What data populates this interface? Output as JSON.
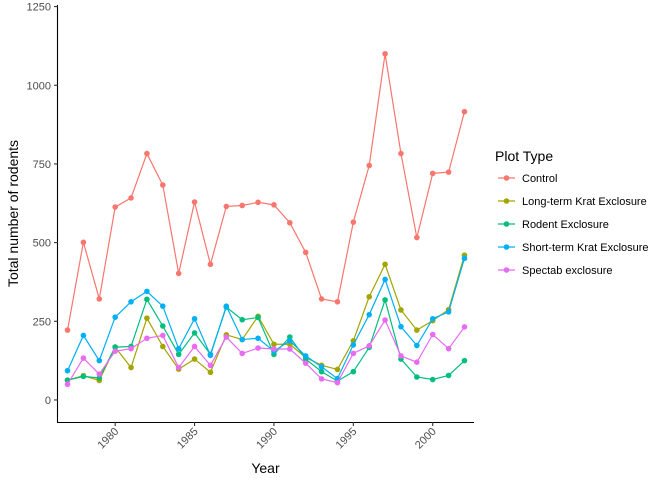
{
  "chart_data": {
    "type": "line",
    "title": "",
    "xlabel": "Year",
    "ylabel": "Total number of rodents",
    "xlim": [
      1976.4,
      2002.6
    ],
    "ylim": [
      -70,
      1255
    ],
    "x_ticks": [
      1980,
      1985,
      1990,
      1995,
      2000
    ],
    "x_tick_labels": [
      "1980",
      "1985",
      "1990",
      "1995",
      "2000"
    ],
    "y_ticks": [
      0,
      250,
      500,
      750,
      1000,
      1250
    ],
    "y_tick_labels": [
      "0",
      "250",
      "500",
      "750",
      "1000",
      "1250"
    ],
    "grid": false,
    "legend": {
      "title": "Plot Type",
      "placement": "right"
    },
    "x": [
      1977,
      1978,
      1979,
      1980,
      1981,
      1982,
      1983,
      1984,
      1985,
      1986,
      1987,
      1988,
      1989,
      1990,
      1991,
      1992,
      1993,
      1994,
      1995,
      1996,
      1997,
      1998,
      1999,
      2000,
      2001,
      2002
    ],
    "series": [
      {
        "name": "Control",
        "color": "#F8766D",
        "values": [
          222,
          501,
          321,
          613,
          642,
          783,
          683,
          402,
          629,
          431,
          615,
          618,
          628,
          620,
          563,
          469,
          321,
          312,
          565,
          745,
          1100,
          783,
          516,
          720,
          724,
          916
        ]
      },
      {
        "name": "Long-term Krat Exclosure",
        "color": "#A3A500",
        "values": [
          63,
          77,
          62,
          168,
          103,
          260,
          170,
          98,
          130,
          88,
          207,
          192,
          266,
          177,
          177,
          135,
          110,
          97,
          188,
          328,
          431,
          286,
          222,
          252,
          287,
          460
        ]
      },
      {
        "name": "Rodent Exclosure",
        "color": "#00BF7D",
        "values": [
          63,
          75,
          70,
          168,
          170,
          320,
          235,
          145,
          213,
          145,
          295,
          255,
          262,
          145,
          200,
          130,
          90,
          60,
          90,
          167,
          318,
          130,
          73,
          65,
          78,
          125
        ]
      },
      {
        "name": "Short-term Krat Exclosure",
        "color": "#00B0F6",
        "values": [
          93,
          205,
          125,
          263,
          312,
          345,
          298,
          163,
          258,
          142,
          298,
          192,
          196,
          155,
          188,
          140,
          105,
          68,
          175,
          271,
          383,
          233,
          173,
          258,
          280,
          450
        ]
      },
      {
        "name": "Spectab exclosure",
        "color": "#E76BF3",
        "values": [
          50,
          133,
          82,
          155,
          163,
          196,
          205,
          103,
          170,
          110,
          200,
          148,
          165,
          162,
          162,
          117,
          67,
          55,
          148,
          172,
          254,
          140,
          120,
          208,
          163,
          232
        ]
      }
    ]
  }
}
